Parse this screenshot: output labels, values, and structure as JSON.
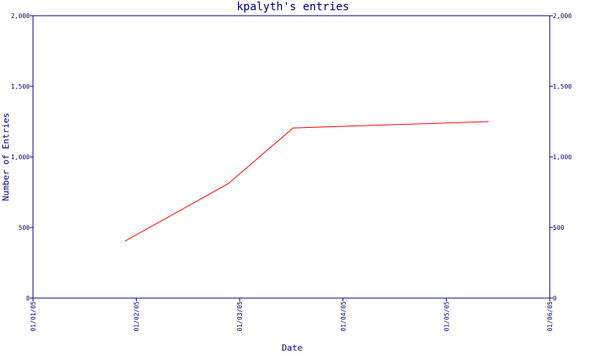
{
  "chart_data": {
    "type": "line",
    "title": "kpalyth's entries",
    "xlabel": "Date",
    "ylabel": "Number of Entries",
    "x_ticks": [
      "01/01/05",
      "01/02/05",
      "01/03/05",
      "01/04/05",
      "01/05/05",
      "01/06/05"
    ],
    "y_ticks": [
      "0",
      "500",
      "1,000",
      "1,500",
      "2,000"
    ],
    "y_ticks_right": [
      "0",
      "500",
      "1,000",
      "1,500",
      "2,000"
    ],
    "ylim": [
      0,
      2000
    ],
    "xlim": [
      "2005-01-01",
      "2005-06-01"
    ],
    "grid": false,
    "series": [
      {
        "color": "#ff0000",
        "points": [
          {
            "x": "2005-01-28",
            "y": 405
          },
          {
            "x": "2005-02-27",
            "y": 810
          },
          {
            "x": "2005-03-18",
            "y": 1205
          },
          {
            "x": "2005-05-14",
            "y": 1250
          }
        ]
      }
    ]
  }
}
